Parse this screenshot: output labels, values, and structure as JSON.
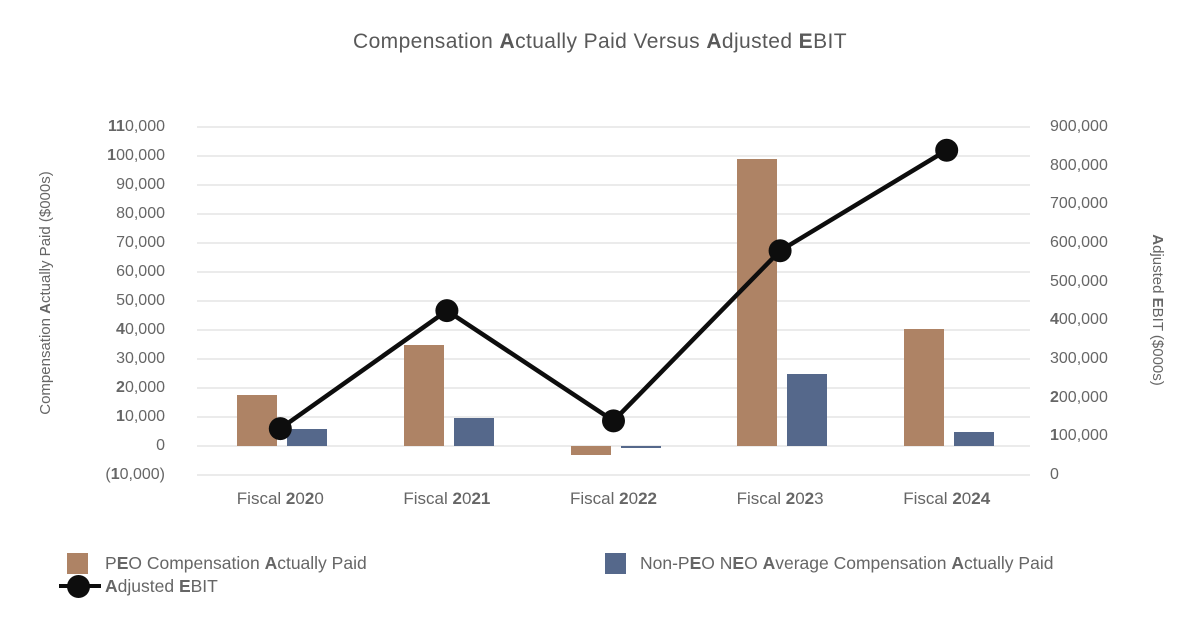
{
  "title": "Compensation Actually Paid Versus Adjusted EBIT",
  "colors": {
    "peo_bar": "#AE8365",
    "neo_bar": "#55688B",
    "ebit_line": "#0D0D0D",
    "grid": "#EBEBEB",
    "text": "#666666",
    "title_text": "#595959"
  },
  "chart_data": {
    "type": "bar",
    "subtype": "grouped-bars-with-line-overlay",
    "title": "Compensation Actually Paid Versus Adjusted EBIT",
    "categories": [
      "Fiscal 2020",
      "Fiscal 2021",
      "Fiscal 2022",
      "Fiscal 2023",
      "Fiscal 2024"
    ],
    "series": [
      {
        "name": "PEO Compensation Actually Paid",
        "type": "bar",
        "axis": "left",
        "color": "#AE8365",
        "values": [
          17500,
          35000,
          -3000,
          99000,
          40500
        ]
      },
      {
        "name": "Non-PEO NEO Average Compensation Actually Paid",
        "type": "bar",
        "axis": "left",
        "color": "#55688B",
        "values": [
          6000,
          9500,
          -800,
          25000,
          5000
        ]
      },
      {
        "name": "Adjusted EBIT",
        "type": "line",
        "axis": "right",
        "color": "#0D0D0D",
        "values": [
          120000,
          425000,
          140000,
          580000,
          840000
        ]
      }
    ],
    "left_axis": {
      "label": "Compensation Actually Paid ($000s)",
      "min": -10000,
      "max": 110000,
      "step": 10000,
      "tick_labels": [
        "(10,000)",
        "0",
        "10,000",
        "20,000",
        "30,000",
        "40,000",
        "50,000",
        "60,000",
        "70,000",
        "80,000",
        "90,000",
        "100,000",
        "110,000"
      ]
    },
    "right_axis": {
      "label": "Adjusted EBIT ($000s)",
      "min": 0,
      "max": 900000,
      "step": 100000,
      "tick_labels": [
        "0",
        "100,000",
        "200,000",
        "300,000",
        "400,000",
        "500,000",
        "600,000",
        "700,000",
        "800,000",
        "900,000"
      ]
    },
    "grid": true,
    "legend_position": "bottom"
  },
  "legend": {
    "peo_label": "PEO Compensation Actually Paid",
    "neo_label": "Non-PEO NEO Average Compensation Actually Paid",
    "ebit_label": "Adjusted EBIT"
  }
}
